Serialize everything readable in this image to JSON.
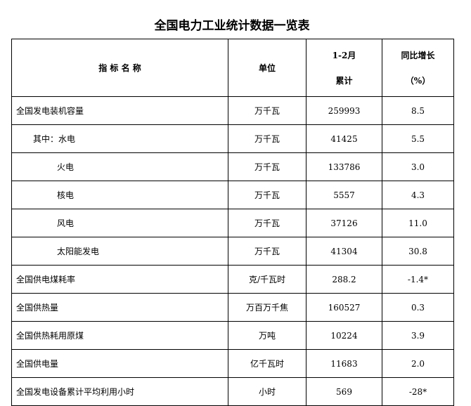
{
  "title": "全国电力工业统计数据一览表",
  "headers": {
    "name": "指 标 名 称",
    "unit": "单位",
    "period_line1": "1-2月",
    "period_line2": "累计",
    "growth_line1": "同比增长",
    "growth_line2": "（%）"
  },
  "rows": [
    {
      "name": "全国发电装机容量",
      "unit": "万千瓦",
      "value": "259993",
      "growth": "8.5"
    },
    {
      "name": "其中：水电",
      "unit": "万千瓦",
      "value": "41425",
      "growth": "5.5"
    },
    {
      "name": "火电",
      "unit": "万千瓦",
      "value": "133786",
      "growth": "3.0"
    },
    {
      "name": "核电",
      "unit": "万千瓦",
      "value": "5557",
      "growth": "4.3"
    },
    {
      "name": "风电",
      "unit": "万千瓦",
      "value": "37126",
      "growth": "11.0"
    },
    {
      "name": "太阳能发电",
      "unit": "万千瓦",
      "value": "41304",
      "growth": "30.8"
    },
    {
      "name": "全国供电煤耗率",
      "unit": "克/千瓦时",
      "value": "288.2",
      "growth": "-1.4*"
    },
    {
      "name": "全国供热量",
      "unit": "万百万千焦",
      "value": "160527",
      "growth": "0.3"
    },
    {
      "name": "全国供热耗用原煤",
      "unit": "万吨",
      "value": "10224",
      "growth": "3.9"
    },
    {
      "name": "全国供电量",
      "unit": "亿千瓦时",
      "value": "11683",
      "growth": "2.0"
    },
    {
      "name": "全国发电设备累计平均利用小时",
      "unit": "小时",
      "value": "569",
      "growth": "-28*"
    }
  ]
}
